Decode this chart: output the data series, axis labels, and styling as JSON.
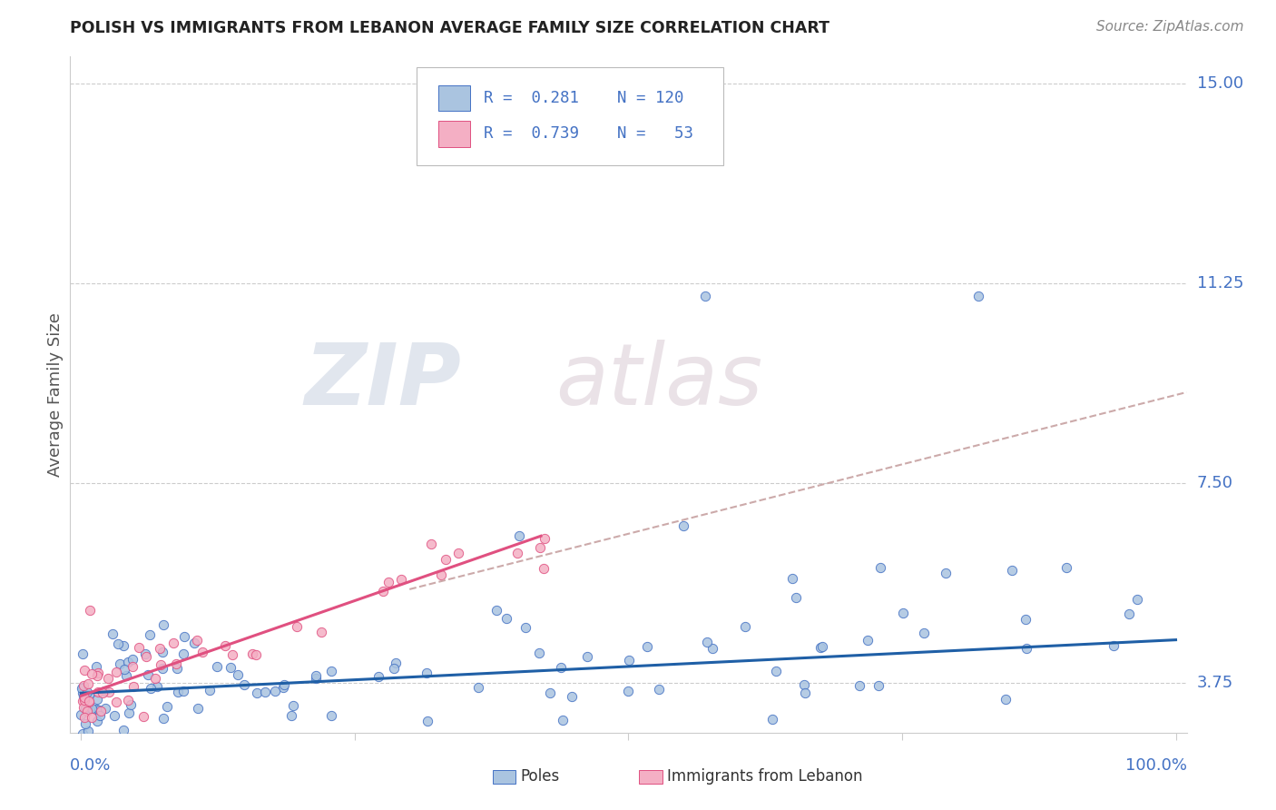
{
  "title": "POLISH VS IMMIGRANTS FROM LEBANON AVERAGE FAMILY SIZE CORRELATION CHART",
  "source": "Source: ZipAtlas.com",
  "ylabel": "Average Family Size",
  "watermark_zip": "ZIP",
  "watermark_atlas": "atlas",
  "y_ticks": [
    3.75,
    7.5,
    11.25,
    15.0
  ],
  "y_min": 2.8,
  "y_max": 15.5,
  "x_min": -0.01,
  "x_max": 1.01,
  "axis_label_color": "#4472c4",
  "blue_scatter_face": "#aac4e0",
  "blue_scatter_edge": "#4472c4",
  "pink_scatter_face": "#f4afc4",
  "pink_scatter_edge": "#e05080",
  "blue_line_color": "#1f5fa6",
  "pink_line_color": "#e05080",
  "dashed_line_color": "#ccaaaa",
  "grid_color": "#cccccc",
  "title_color": "#222222",
  "source_color": "#888888",
  "ylabel_color": "#555555",
  "legend_text_color": "#4472c4",
  "watermark_color_zip": "#d0d8e8",
  "watermark_color_atlas": "#d8d0d8",
  "blue_trend_x": [
    0.0,
    1.0
  ],
  "blue_trend_y": [
    3.55,
    4.55
  ],
  "pink_trend_x": [
    0.0,
    0.42
  ],
  "pink_trend_y": [
    3.5,
    6.5
  ],
  "dashed_trend_x": [
    0.3,
    1.01
  ],
  "dashed_trend_y": [
    5.5,
    9.2
  ]
}
